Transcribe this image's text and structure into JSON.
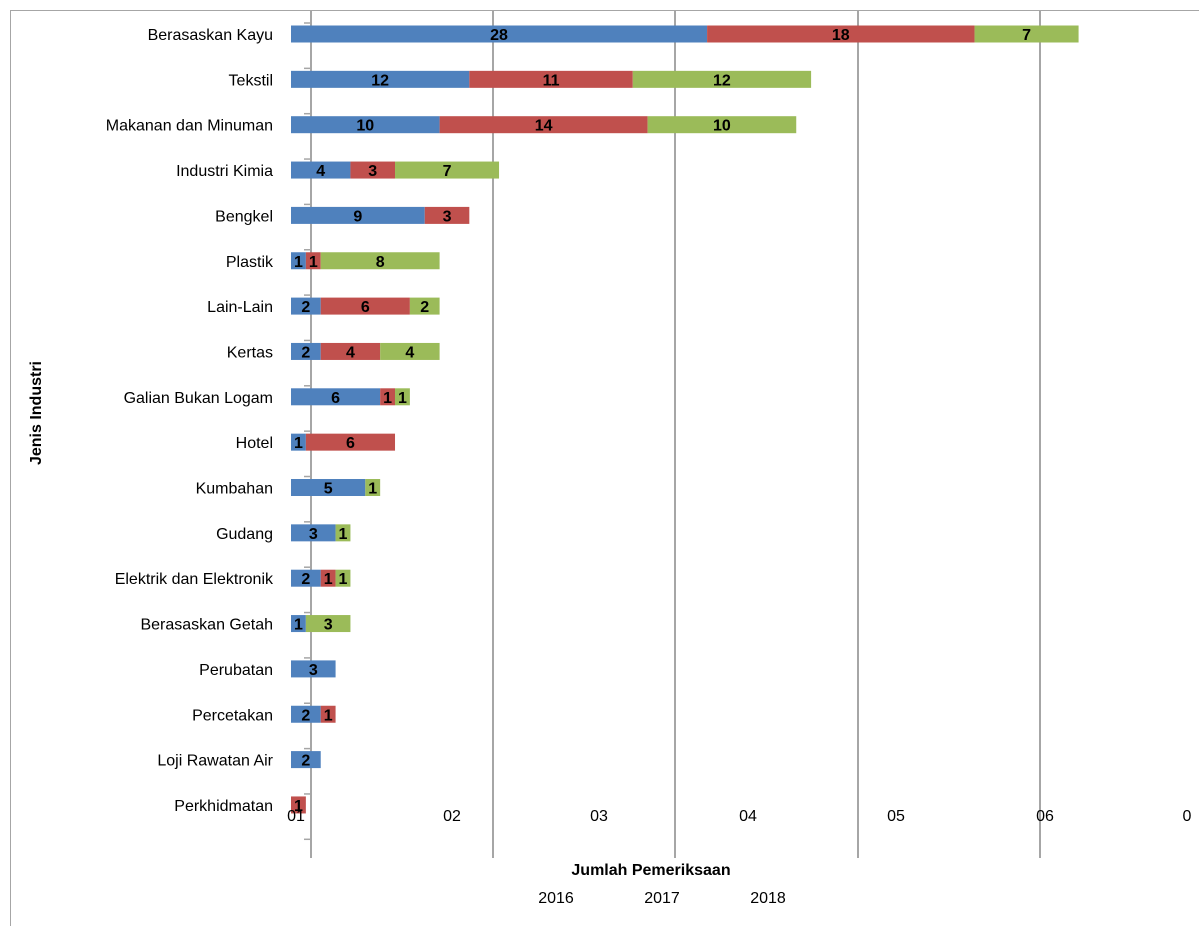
{
  "chart_data": {
    "type": "bar",
    "orientation": "horizontal",
    "stacked": true,
    "title": "",
    "xlabel": "Jumlah Pemeriksaan",
    "ylabel": "Jenis Industri",
    "categories": [
      "Berasaskan Kayu",
      "Tekstil",
      "Makanan dan Minuman",
      "Industri Kimia",
      "Bengkel",
      "Plastik",
      "Lain-Lain",
      "Kertas",
      "Galian Bukan Logam",
      "Hotel",
      "Kumbahan",
      "Gudang",
      "Elektrik dan Elektronik",
      "Berasaskan Getah",
      "Perubatan",
      "Percetakan",
      "Loji Rawatan Air",
      "Perkhidmatan"
    ],
    "series": [
      {
        "name": "2016",
        "color": "#4f81bd",
        "values": [
          28,
          12,
          10,
          4,
          9,
          1,
          2,
          2,
          6,
          1,
          5,
          3,
          2,
          1,
          3,
          2,
          2,
          0
        ]
      },
      {
        "name": "2017",
        "color": "#c0504d",
        "values": [
          18,
          11,
          14,
          3,
          3,
          1,
          6,
          4,
          1,
          6,
          0,
          0,
          1,
          0,
          0,
          1,
          0,
          1
        ]
      },
      {
        "name": "2018",
        "color": "#9bbb59",
        "values": [
          7,
          12,
          10,
          7,
          0,
          8,
          2,
          4,
          1,
          0,
          1,
          1,
          1,
          3,
          0,
          0,
          0,
          0
        ]
      }
    ],
    "x_tick_labels": [
      "01",
      "02",
      "03",
      "04",
      "05",
      "06",
      "0"
    ],
    "xlim": [
      0,
      60
    ],
    "grid": true,
    "legend": {
      "position": "bottom",
      "items": [
        "2016",
        "2017",
        "2018"
      ]
    }
  }
}
